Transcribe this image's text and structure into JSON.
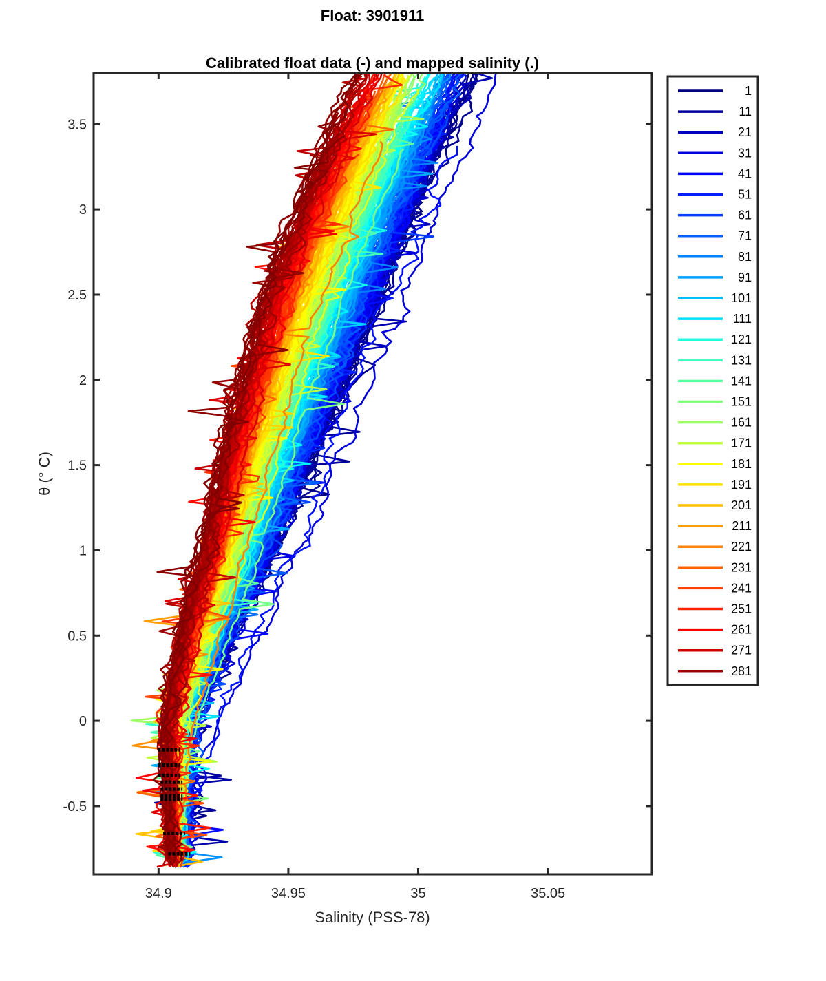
{
  "figure": {
    "title": "Float: 3901911",
    "subtitle": "Calibrated float data (-) and mapped salinity (.)"
  },
  "chart_data": {
    "type": "line",
    "title": "Float: 3901911",
    "subtitle": "Calibrated float data (-) and mapped salinity (.)",
    "xlabel": "Salinity (PSS-78)",
    "ylabel": "θ (° C)",
    "xlim": [
      34.875,
      35.09
    ],
    "ylim": [
      -0.9,
      3.8
    ],
    "xticks": [
      34.9,
      34.95,
      35,
      35.05
    ],
    "xtick_labels": [
      "34.9",
      "34.95",
      "35",
      "35.05"
    ],
    "yticks": [
      -0.5,
      0,
      0.5,
      1,
      1.5,
      2,
      2.5,
      3,
      3.5
    ],
    "ytick_labels": [
      "-0.5",
      "0",
      "0.5",
      "1",
      "1.5",
      "2",
      "2.5",
      "3",
      "3.5"
    ],
    "colormap": "jet",
    "legend_position": "outside-right",
    "series": [
      {
        "name": "1",
        "color": "#000080"
      },
      {
        "name": "11",
        "color": "#00009F"
      },
      {
        "name": "21",
        "color": "#0000BF"
      },
      {
        "name": "31",
        "color": "#0000DF"
      },
      {
        "name": "41",
        "color": "#0000FF"
      },
      {
        "name": "51",
        "color": "#0020FF"
      },
      {
        "name": "61",
        "color": "#0040FF"
      },
      {
        "name": "71",
        "color": "#0060FF"
      },
      {
        "name": "81",
        "color": "#0080FF"
      },
      {
        "name": "91",
        "color": "#00A0FF"
      },
      {
        "name": "101",
        "color": "#00BFFF"
      },
      {
        "name": "111",
        "color": "#00DFFF"
      },
      {
        "name": "121",
        "color": "#20FFDF"
      },
      {
        "name": "131",
        "color": "#40FFBF"
      },
      {
        "name": "141",
        "color": "#60FF9F"
      },
      {
        "name": "151",
        "color": "#80FF80"
      },
      {
        "name": "161",
        "color": "#9FFF60"
      },
      {
        "name": "171",
        "color": "#BFFF40"
      },
      {
        "name": "181",
        "color": "#FFFF00"
      },
      {
        "name": "191",
        "color": "#FFDF00"
      },
      {
        "name": "201",
        "color": "#FFBF00"
      },
      {
        "name": "211",
        "color": "#FF9F00"
      },
      {
        "name": "221",
        "color": "#FF8000"
      },
      {
        "name": "231",
        "color": "#FF6000"
      },
      {
        "name": "241",
        "color": "#FF4000"
      },
      {
        "name": "251",
        "color": "#FF2000"
      },
      {
        "name": "261",
        "color": "#FF0000"
      },
      {
        "name": "271",
        "color": "#CF0000"
      },
      {
        "name": "281",
        "color": "#9F0000"
      }
    ],
    "profile_envelope": {
      "theta": [
        -0.85,
        -0.5,
        0,
        0.5,
        1,
        1.5,
        2,
        2.5,
        3,
        3.5,
        3.8
      ],
      "salinity_first_profile": [
        34.91,
        34.911,
        34.913,
        34.928,
        34.944,
        34.958,
        34.972,
        34.986,
        34.999,
        35.013,
        35.022
      ],
      "salinity_last_profile": [
        34.905,
        34.904,
        34.903,
        34.909,
        34.917,
        34.924,
        34.932,
        34.941,
        34.954,
        34.968,
        34.978
      ]
    },
    "mapped_salinity_points": [
      {
        "theta": -0.17,
        "salinity": 34.904
      },
      {
        "theta": -0.26,
        "salinity": 34.904
      },
      {
        "theta": -0.32,
        "salinity": 34.904
      },
      {
        "theta": -0.36,
        "salinity": 34.905
      },
      {
        "theta": -0.4,
        "salinity": 34.905
      },
      {
        "theta": -0.44,
        "salinity": 34.905
      },
      {
        "theta": -0.46,
        "salinity": 34.905
      },
      {
        "theta": -0.66,
        "salinity": 34.906
      },
      {
        "theta": -0.78,
        "salinity": 34.908
      }
    ]
  }
}
